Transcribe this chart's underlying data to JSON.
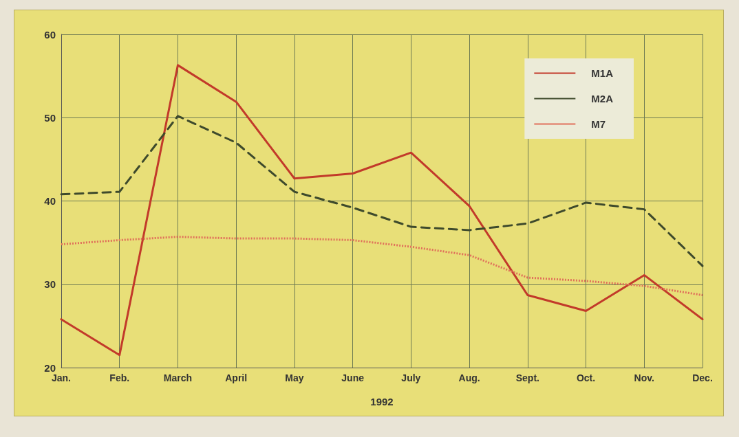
{
  "chart_data": {
    "type": "line",
    "categories": [
      "Jan.",
      "Feb.",
      "March",
      "April",
      "May",
      "June",
      "July",
      "Aug.",
      "Sept.",
      "Oct.",
      "Nov.",
      "Dec."
    ],
    "xlabel": "1992",
    "series": [
      {
        "name": "M1A",
        "color": "#c23a2a",
        "line_style": "solid",
        "values": [
          25.8,
          21.5,
          56.3,
          51.9,
          42.7,
          43.3,
          45.8,
          39.4,
          28.7,
          26.8,
          31.1,
          25.8
        ]
      },
      {
        "name": "M2A",
        "color": "#3e4a2c",
        "line_style": "dashed",
        "values": [
          40.8,
          41.1,
          50.2,
          47.0,
          41.1,
          39.2,
          36.9,
          36.5,
          37.3,
          39.8,
          39.0,
          32.2
        ]
      },
      {
        "name": "M7",
        "color": "#e0705a",
        "line_style": "dotted",
        "values": [
          34.8,
          35.3,
          35.7,
          35.5,
          35.5,
          35.3,
          34.5,
          33.5,
          30.8,
          30.4,
          29.8,
          28.7
        ]
      }
    ],
    "ylim": [
      20,
      60
    ],
    "yticks": [
      20,
      30,
      40,
      50,
      60
    ],
    "grid": true,
    "legend": "top right",
    "marker": "none"
  }
}
